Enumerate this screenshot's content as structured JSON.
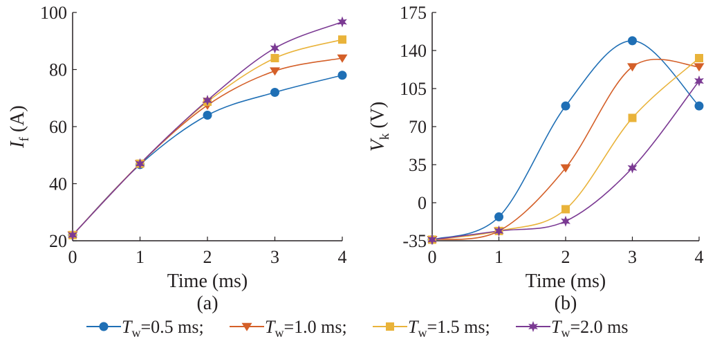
{
  "legend": {
    "items": [
      {
        "name_main": "T",
        "name_sub": "w",
        "name_rest": "=0.5 ms;",
        "color": "#1f6fb5",
        "marker": "circle"
      },
      {
        "name_main": "T",
        "name_sub": "w",
        "name_rest": "=1.0 ms;",
        "color": "#d45f28",
        "marker": "triangle-down"
      },
      {
        "name_main": "T",
        "name_sub": "w",
        "name_rest": "=1.5 ms;",
        "color": "#e9b33a",
        "marker": "square"
      },
      {
        "name_main": "T",
        "name_sub": "w",
        "name_rest": "=2.0 ms",
        "color": "#7b3a93",
        "marker": "star"
      }
    ]
  },
  "chart_data": [
    {
      "type": "line",
      "panel_label": "(a)",
      "xlabel": "Time (ms)",
      "ylabel_main": "I",
      "ylabel_sub": "f",
      "ylabel_rest": " (A)",
      "x": [
        0,
        1,
        2,
        3,
        4
      ],
      "xticks": [
        "0",
        "1",
        "2",
        "3",
        "4"
      ],
      "xlim": [
        0,
        4
      ],
      "ylim": [
        20,
        100
      ],
      "yticks": [
        "20",
        "40",
        "60",
        "80",
        "100"
      ],
      "ytick_values": [
        20,
        40,
        60,
        80,
        100
      ],
      "series": [
        {
          "values": [
            22,
            46.7,
            64,
            72,
            78
          ],
          "color": "#1f6fb5",
          "marker": "circle"
        },
        {
          "values": [
            22,
            47,
            67.5,
            79.5,
            84
          ],
          "color": "#d45f28",
          "marker": "triangle-down"
        },
        {
          "values": [
            22,
            47,
            68.7,
            84,
            90.5
          ],
          "color": "#e9b33a",
          "marker": "square"
        },
        {
          "values": [
            22,
            47,
            69.2,
            87.5,
            96.7
          ],
          "color": "#7b3a93",
          "marker": "star"
        }
      ]
    },
    {
      "type": "line",
      "panel_label": "(b)",
      "xlabel": "Time (ms)",
      "ylabel_main": "V",
      "ylabel_sub": "k",
      "ylabel_rest": " (V)",
      "x": [
        0,
        1,
        2,
        3,
        4
      ],
      "xticks": [
        "0",
        "1",
        "2",
        "3",
        "4"
      ],
      "xlim": [
        0,
        4
      ],
      "ylim": [
        -35,
        175
      ],
      "yticks": [
        "-35",
        "0",
        "35",
        "70",
        "105",
        "140",
        "175"
      ],
      "ytick_values": [
        -35,
        0,
        35,
        70,
        105,
        140,
        175
      ],
      "series": [
        {
          "values": [
            -34,
            -13,
            89,
            149,
            89
          ],
          "color": "#1f6fb5",
          "marker": "circle"
        },
        {
          "values": [
            -34,
            -26,
            32,
            125,
            125
          ],
          "color": "#d45f28",
          "marker": "triangle-down"
        },
        {
          "values": [
            -34,
            -26,
            -6,
            78,
            133
          ],
          "color": "#e9b33a",
          "marker": "square"
        },
        {
          "values": [
            -34,
            -26,
            -17,
            32,
            112
          ],
          "color": "#7b3a93",
          "marker": "star"
        }
      ]
    }
  ]
}
